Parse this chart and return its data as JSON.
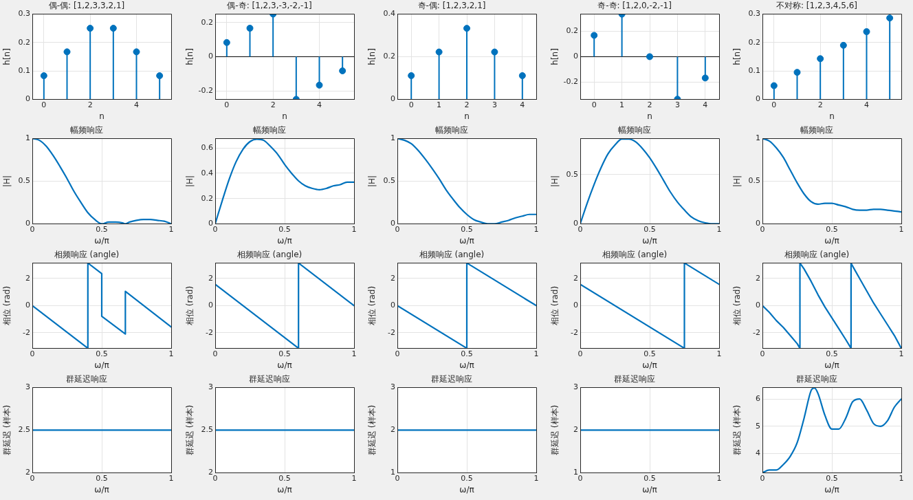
{
  "chart_data": [
    {
      "type": "lollipop",
      "title": "偶-偶: [1,2,3,3,2,1]",
      "xlabel": "n",
      "ylabel": "h[n]",
      "x": [
        0,
        1,
        2,
        3,
        4,
        5
      ],
      "values": [
        0.083,
        0.167,
        0.25,
        0.25,
        0.167,
        0.083
      ],
      "color": "#0072bd",
      "xlim": [
        -0.5,
        5.5
      ],
      "xticks": [
        0,
        2,
        4
      ],
      "ylim": [
        0,
        0.3
      ],
      "yticks": [
        0,
        0.1,
        0.2,
        0.3
      ],
      "grid": true,
      "marker": "circle"
    },
    {
      "type": "lollipop",
      "title": "偶-奇: [1,2,3,-3,-2,-1]",
      "xlabel": "n",
      "ylabel": "h[n]",
      "x": [
        0,
        1,
        2,
        3,
        4,
        5
      ],
      "values": [
        0.083,
        0.167,
        0.25,
        -0.25,
        -0.167,
        -0.083
      ],
      "color": "#0072bd",
      "xlim": [
        -0.5,
        5.5
      ],
      "xticks": [
        0,
        2,
        4
      ],
      "ylim": [
        -0.25,
        0.25
      ],
      "yticks": [
        -0.2,
        0,
        0.2
      ],
      "grid": true,
      "marker": "circle",
      "ref_lines": [
        {
          "axis": "y",
          "value": 0,
          "color": "#000000"
        }
      ]
    },
    {
      "type": "lollipop",
      "title": "奇-偶: [1,2,3,2,1]",
      "xlabel": "n",
      "ylabel": "h[n]",
      "x": [
        0,
        1,
        2,
        3,
        4
      ],
      "values": [
        0.111,
        0.222,
        0.333,
        0.222,
        0.111
      ],
      "color": "#0072bd",
      "xlim": [
        -0.5,
        4.5
      ],
      "xticks": [
        0,
        1,
        2,
        3,
        4
      ],
      "ylim": [
        0,
        0.4
      ],
      "yticks": [
        0,
        0.2,
        0.4
      ],
      "grid": true,
      "marker": "circle"
    },
    {
      "type": "lollipop",
      "title": "奇-奇: [1,2,0,-2,-1]",
      "xlabel": "n",
      "ylabel": "h[n]",
      "x": [
        0,
        1,
        2,
        3,
        4
      ],
      "values": [
        0.167,
        0.333,
        0,
        -0.333,
        -0.167
      ],
      "color": "#0072bd",
      "xlim": [
        -0.5,
        4.5
      ],
      "xticks": [
        0,
        1,
        2,
        3,
        4
      ],
      "ylim": [
        -0.334,
        0.334
      ],
      "yticks": [
        -0.2,
        0,
        0.2
      ],
      "grid": true,
      "marker": "circle",
      "ref_lines": [
        {
          "axis": "y",
          "value": 0,
          "color": "#000000"
        }
      ]
    },
    {
      "type": "lollipop",
      "title": "不对称: [1,2,3,4,5,6]",
      "xlabel": "n",
      "ylabel": "h[n]",
      "x": [
        0,
        1,
        2,
        3,
        4,
        5
      ],
      "values": [
        0.048,
        0.095,
        0.143,
        0.19,
        0.238,
        0.286
      ],
      "color": "#0072bd",
      "xlim": [
        -0.5,
        5.5
      ],
      "xticks": [
        0,
        2,
        4
      ],
      "ylim": [
        0,
        0.3
      ],
      "yticks": [
        0,
        0.1,
        0.2,
        0.3
      ],
      "grid": true,
      "marker": "circle"
    },
    {
      "type": "line",
      "title": "幅频响应",
      "xlabel": "ω/π",
      "ylabel": "|H|",
      "x": [
        0,
        0.05,
        0.1,
        0.15,
        0.2,
        0.25,
        0.3,
        0.35,
        0.4,
        0.45,
        0.5,
        0.55,
        0.6,
        0.65,
        0.67,
        0.7,
        0.75,
        0.8,
        0.85,
        0.9,
        0.95,
        1
      ],
      "values": [
        1,
        0.98,
        0.91,
        0.8,
        0.67,
        0.53,
        0.38,
        0.25,
        0.13,
        0.05,
        0,
        0.02,
        0.02,
        0.01,
        0,
        0.02,
        0.04,
        0.05,
        0.05,
        0.04,
        0.03,
        0
      ],
      "color": "#0072bd",
      "xlim": [
        0,
        1
      ],
      "xticks": [
        0,
        0.5,
        1
      ],
      "ylim": [
        0,
        1
      ],
      "yticks": [
        0,
        0.5,
        1
      ],
      "grid": true
    },
    {
      "type": "line",
      "title": "幅频响应",
      "xlabel": "ω/π",
      "ylabel": "|H|",
      "x": [
        0,
        0.05,
        0.1,
        0.15,
        0.2,
        0.25,
        0.3,
        0.35,
        0.4,
        0.45,
        0.5,
        0.55,
        0.6,
        0.65,
        0.7,
        0.75,
        0.8,
        0.85,
        0.9,
        0.95,
        1
      ],
      "values": [
        0,
        0.18,
        0.35,
        0.49,
        0.59,
        0.65,
        0.67,
        0.66,
        0.61,
        0.55,
        0.47,
        0.4,
        0.34,
        0.3,
        0.28,
        0.27,
        0.28,
        0.3,
        0.31,
        0.33,
        0.33
      ],
      "color": "#0072bd",
      "xlim": [
        0,
        1
      ],
      "xticks": [
        0,
        0.5,
        1
      ],
      "ylim": [
        0,
        0.675
      ],
      "yticks": [
        0,
        0.2,
        0.4,
        0.6
      ],
      "grid": true
    },
    {
      "type": "line",
      "title": "幅频响应",
      "xlabel": "ω/π",
      "ylabel": "|H|",
      "x": [
        0,
        0.05,
        0.1,
        0.15,
        0.2,
        0.25,
        0.3,
        0.35,
        0.4,
        0.45,
        0.5,
        0.55,
        0.6,
        0.65,
        0.67,
        0.7,
        0.75,
        0.8,
        0.85,
        0.9,
        0.95,
        1
      ],
      "values": [
        1,
        0.98,
        0.94,
        0.86,
        0.76,
        0.65,
        0.53,
        0.4,
        0.29,
        0.19,
        0.11,
        0.05,
        0.02,
        0,
        0,
        0,
        0.02,
        0.04,
        0.07,
        0.09,
        0.11,
        0.11
      ],
      "color": "#0072bd",
      "xlim": [
        0,
        1
      ],
      "xticks": [
        0,
        0.5,
        1
      ],
      "ylim": [
        0,
        1
      ],
      "yticks": [
        0,
        0.5,
        1
      ],
      "grid": true
    },
    {
      "type": "line",
      "title": "幅频响应",
      "xlabel": "ω/π",
      "ylabel": "|H|",
      "x": [
        0,
        0.05,
        0.1,
        0.15,
        0.2,
        0.25,
        0.3,
        0.35,
        0.4,
        0.45,
        0.5,
        0.55,
        0.6,
        0.65,
        0.7,
        0.75,
        0.8,
        0.85,
        0.9,
        0.95,
        1
      ],
      "values": [
        0,
        0.21,
        0.4,
        0.57,
        0.71,
        0.8,
        0.86,
        0.86,
        0.83,
        0.76,
        0.67,
        0.56,
        0.44,
        0.32,
        0.22,
        0.14,
        0.07,
        0.03,
        0.01,
        0,
        0
      ],
      "color": "#0072bd",
      "xlim": [
        0,
        1
      ],
      "xticks": [
        0,
        0.5,
        1
      ],
      "ylim": [
        0,
        0.865
      ],
      "yticks": [
        0,
        0.5
      ],
      "grid": true
    },
    {
      "type": "line",
      "title": "幅频响应",
      "xlabel": "ω/π",
      "ylabel": "|H|",
      "x": [
        0,
        0.05,
        0.1,
        0.15,
        0.2,
        0.25,
        0.3,
        0.35,
        0.4,
        0.45,
        0.5,
        0.55,
        0.6,
        0.65,
        0.7,
        0.75,
        0.8,
        0.85,
        0.9,
        0.95,
        1
      ],
      "values": [
        1,
        0.97,
        0.89,
        0.78,
        0.63,
        0.48,
        0.35,
        0.26,
        0.23,
        0.24,
        0.24,
        0.22,
        0.2,
        0.17,
        0.16,
        0.16,
        0.17,
        0.17,
        0.16,
        0.15,
        0.14
      ],
      "color": "#0072bd",
      "xlim": [
        0,
        1
      ],
      "xticks": [
        0,
        0.5,
        1
      ],
      "ylim": [
        0,
        1
      ],
      "yticks": [
        0,
        0.5,
        1
      ],
      "grid": true
    },
    {
      "type": "line",
      "title": "相频响应 (angle)",
      "xlabel": "ω/π",
      "ylabel": "相位 (rad)",
      "x": [
        0,
        0.4,
        0.4,
        0.5,
        0.5,
        0.67,
        0.67,
        1
      ],
      "values": [
        0,
        -3.14,
        3.14,
        2.36,
        -0.79,
        -2.09,
        1.05,
        -1.57
      ],
      "color": "#0072bd",
      "xlim": [
        0,
        1
      ],
      "xticks": [
        0,
        0.5,
        1
      ],
      "ylim": [
        -3.1416,
        3.1416
      ],
      "yticks": [
        -2,
        0,
        2
      ],
      "grid": true
    },
    {
      "type": "line",
      "title": "相频响应 (angle)",
      "xlabel": "ω/π",
      "ylabel": "相位 (rad)",
      "x": [
        0,
        0.6,
        0.6,
        1
      ],
      "values": [
        1.57,
        -3.14,
        3.14,
        0
      ],
      "color": "#0072bd",
      "xlim": [
        0,
        1
      ],
      "xticks": [
        0,
        0.5,
        1
      ],
      "ylim": [
        -3.1416,
        3.1416
      ],
      "yticks": [
        -2,
        0,
        2
      ],
      "grid": true
    },
    {
      "type": "line",
      "title": "相频响应 (angle)",
      "xlabel": "ω/π",
      "ylabel": "相位 (rad)",
      "x": [
        0,
        0.5,
        0.5,
        1
      ],
      "values": [
        0,
        -3.14,
        3.14,
        0
      ],
      "color": "#0072bd",
      "xlim": [
        0,
        1
      ],
      "xticks": [
        0,
        0.5,
        1
      ],
      "ylim": [
        -3.1416,
        3.1416
      ],
      "yticks": [
        -2,
        0,
        2
      ],
      "grid": true
    },
    {
      "type": "line",
      "title": "相频响应 (angle)",
      "xlabel": "ω/π",
      "ylabel": "相位 (rad)",
      "x": [
        0,
        0.75,
        0.75,
        1
      ],
      "values": [
        1.57,
        -3.14,
        3.14,
        1.57
      ],
      "color": "#0072bd",
      "xlim": [
        0,
        1
      ],
      "xticks": [
        0,
        0.5,
        1
      ],
      "ylim": [
        -3.1416,
        3.1416
      ],
      "yticks": [
        -2,
        0,
        2
      ],
      "grid": true
    },
    {
      "type": "line",
      "title": "相频响应 (angle)",
      "xlabel": "ω/π",
      "ylabel": "相位 (rad)",
      "x": [
        0,
        0.05,
        0.1,
        0.15,
        0.2,
        0.25,
        0.27,
        0.27,
        0.3,
        0.35,
        0.375,
        0.4,
        0.45,
        0.5,
        0.55,
        0.6,
        0.638,
        0.638,
        0.65,
        0.7,
        0.75,
        0.8,
        0.85,
        0.9,
        0.95,
        1
      ],
      "values": [
        0,
        -0.5,
        -1.1,
        -1.6,
        -2.2,
        -2.8,
        -3.14,
        3.14,
        2.7,
        1.8,
        1.3,
        0.8,
        -0.1,
        -0.9,
        -1.7,
        -2.5,
        -3.14,
        3.14,
        2.9,
        2,
        1.1,
        0.2,
        -0.6,
        -1.4,
        -2.2,
        -3.14
      ],
      "color": "#0072bd",
      "xlim": [
        0,
        1
      ],
      "xticks": [
        0,
        0.5,
        1
      ],
      "ylim": [
        -3.1416,
        3.1416
      ],
      "yticks": [
        -2,
        0,
        2
      ],
      "grid": true
    },
    {
      "type": "line",
      "title": "群延迟响应",
      "xlabel": "ω/π",
      "ylabel": "群延迟 (样本)",
      "x": [
        0,
        1
      ],
      "values": [
        2.5,
        2.5
      ],
      "color": "#0072bd",
      "xlim": [
        0,
        1
      ],
      "xticks": [
        0,
        0.5,
        1
      ],
      "ylim": [
        2,
        3
      ],
      "yticks": [
        2,
        2.5,
        3
      ],
      "grid": true
    },
    {
      "type": "line",
      "title": "群延迟响应",
      "xlabel": "ω/π",
      "ylabel": "群延迟 (样本)",
      "x": [
        0,
        1
      ],
      "values": [
        2.5,
        2.5
      ],
      "color": "#0072bd",
      "xlim": [
        0,
        1
      ],
      "xticks": [
        0,
        0.5,
        1
      ],
      "ylim": [
        2,
        3
      ],
      "yticks": [
        2,
        2.5,
        3
      ],
      "grid": true
    },
    {
      "type": "line",
      "title": "群延迟响应",
      "xlabel": "ω/π",
      "ylabel": "群延迟 (样本)",
      "x": [
        0,
        1
      ],
      "values": [
        2,
        2
      ],
      "color": "#0072bd",
      "xlim": [
        0,
        1
      ],
      "xticks": [
        0,
        0.5,
        1
      ],
      "ylim": [
        1,
        3
      ],
      "yticks": [
        1,
        2,
        3
      ],
      "grid": true
    },
    {
      "type": "line",
      "title": "群延迟响应",
      "xlabel": "ω/π",
      "ylabel": "群延迟 (样本)",
      "x": [
        0,
        1
      ],
      "values": [
        2,
        2
      ],
      "color": "#0072bd",
      "xlim": [
        0,
        1
      ],
      "xticks": [
        0,
        0.5,
        1
      ],
      "ylim": [
        1,
        3
      ],
      "yticks": [
        1,
        2,
        3
      ],
      "grid": true
    },
    {
      "type": "line",
      "title": "群延迟响应",
      "xlabel": "ω/π",
      "ylabel": "群延迟 (样本)",
      "x": [
        0,
        0.05,
        0.1,
        0.15,
        0.2,
        0.25,
        0.3,
        0.35,
        0.375,
        0.4,
        0.45,
        0.5,
        0.55,
        0.6,
        0.65,
        0.7,
        0.75,
        0.8,
        0.85,
        0.9,
        0.95,
        1
      ],
      "values": [
        3.3,
        3.4,
        3.4,
        3.6,
        3.9,
        4.4,
        5.3,
        6.3,
        6.4,
        6.2,
        5.4,
        4.9,
        4.9,
        5.3,
        5.9,
        6,
        5.6,
        5.1,
        5,
        5.2,
        5.7,
        6
      ],
      "color": "#0072bd",
      "xlim": [
        0,
        1
      ],
      "xticks": [
        0,
        0.5,
        1
      ],
      "ylim": [
        3.3,
        6.42
      ],
      "yticks": [
        4,
        5,
        6
      ],
      "grid": true
    }
  ]
}
